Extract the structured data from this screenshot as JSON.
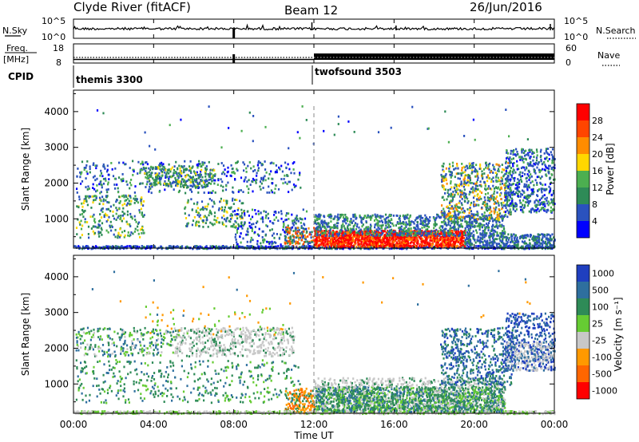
{
  "header": {
    "station": "Clyde River (fitACF)",
    "beam": "Beam 12",
    "date": "26/Jun/2016"
  },
  "time_axis": {
    "label": "Time UT",
    "ticks": [
      "00:00",
      "04:00",
      "08:00",
      "12:00",
      "16:00",
      "20:00",
      "00:00"
    ],
    "hours": [
      0,
      4,
      8,
      12,
      16,
      20,
      24
    ],
    "range_hours": [
      0,
      24
    ]
  },
  "noise_panel": {
    "left_label": "N.Sky",
    "right_label": "N.Search",
    "left_ticks": [
      "10^5",
      "10^0"
    ],
    "right_ticks": [
      "10^5",
      "10^0"
    ]
  },
  "freq_panel": {
    "left_label_line1": "Freq.",
    "left_label_line2": "[MHz]",
    "right_label": "Nave",
    "left_ticks": [
      "18",
      "8"
    ],
    "right_ticks": [
      "60",
      "0"
    ]
  },
  "cpid_panel": {
    "label": "CPID",
    "modes": [
      {
        "name": "themis 3300",
        "start_hour": 0
      },
      {
        "name": "twofsound 3503",
        "start_hour": 12
      }
    ]
  },
  "power_panel": {
    "ylabel": "Slant Range [km]",
    "yticks": [
      "1000",
      "2000",
      "3000",
      "4000"
    ],
    "ytick_values": [
      1000,
      2000,
      3000,
      4000
    ],
    "yrange": [
      180,
      4600
    ],
    "colorbar_label": "Power [dB]",
    "colorbar_ticks": [
      "4",
      "8",
      "12",
      "16",
      "20",
      "24",
      "28"
    ],
    "colors": [
      "#0000ff",
      "#2a52be",
      "#2e8b57",
      "#4caf50",
      "#ffd700",
      "#ff8c00",
      "#ff4500",
      "#ff0000"
    ]
  },
  "velocity_panel": {
    "ylabel": "Slant Range [km]",
    "yticks": [
      "1000",
      "2000",
      "3000",
      "4000"
    ],
    "ytick_values": [
      1000,
      2000,
      3000,
      4000
    ],
    "yrange": [
      180,
      4600
    ],
    "colorbar_label": "Velocity [m s⁻¹]",
    "colorbar_ticks": [
      "1000",
      "500",
      "100",
      "25",
      "-25",
      "-100",
      "-500",
      "-1000"
    ],
    "colors": [
      "#1f3fbf",
      "#2e6f9e",
      "#2e8b57",
      "#66cc33",
      "#c8c8c8",
      "#ff9900",
      "#ff6600",
      "#ff0000"
    ]
  },
  "chart_data": {
    "type": "heatmap",
    "scatter_regions": [
      {
        "name": "morning-echoes",
        "t0": 0.2,
        "t1": 11.5,
        "r0": 600,
        "r1": 2700,
        "level": "weak"
      },
      {
        "name": "afternoon-echoes",
        "t0": 18.3,
        "t1": 24,
        "r0": 1000,
        "r1": 3000,
        "level": "moderate"
      },
      {
        "name": "near-range-strong",
        "t0": 12,
        "t1": 19.5,
        "r0": 200,
        "r1": 1100,
        "level": "strong"
      }
    ]
  }
}
